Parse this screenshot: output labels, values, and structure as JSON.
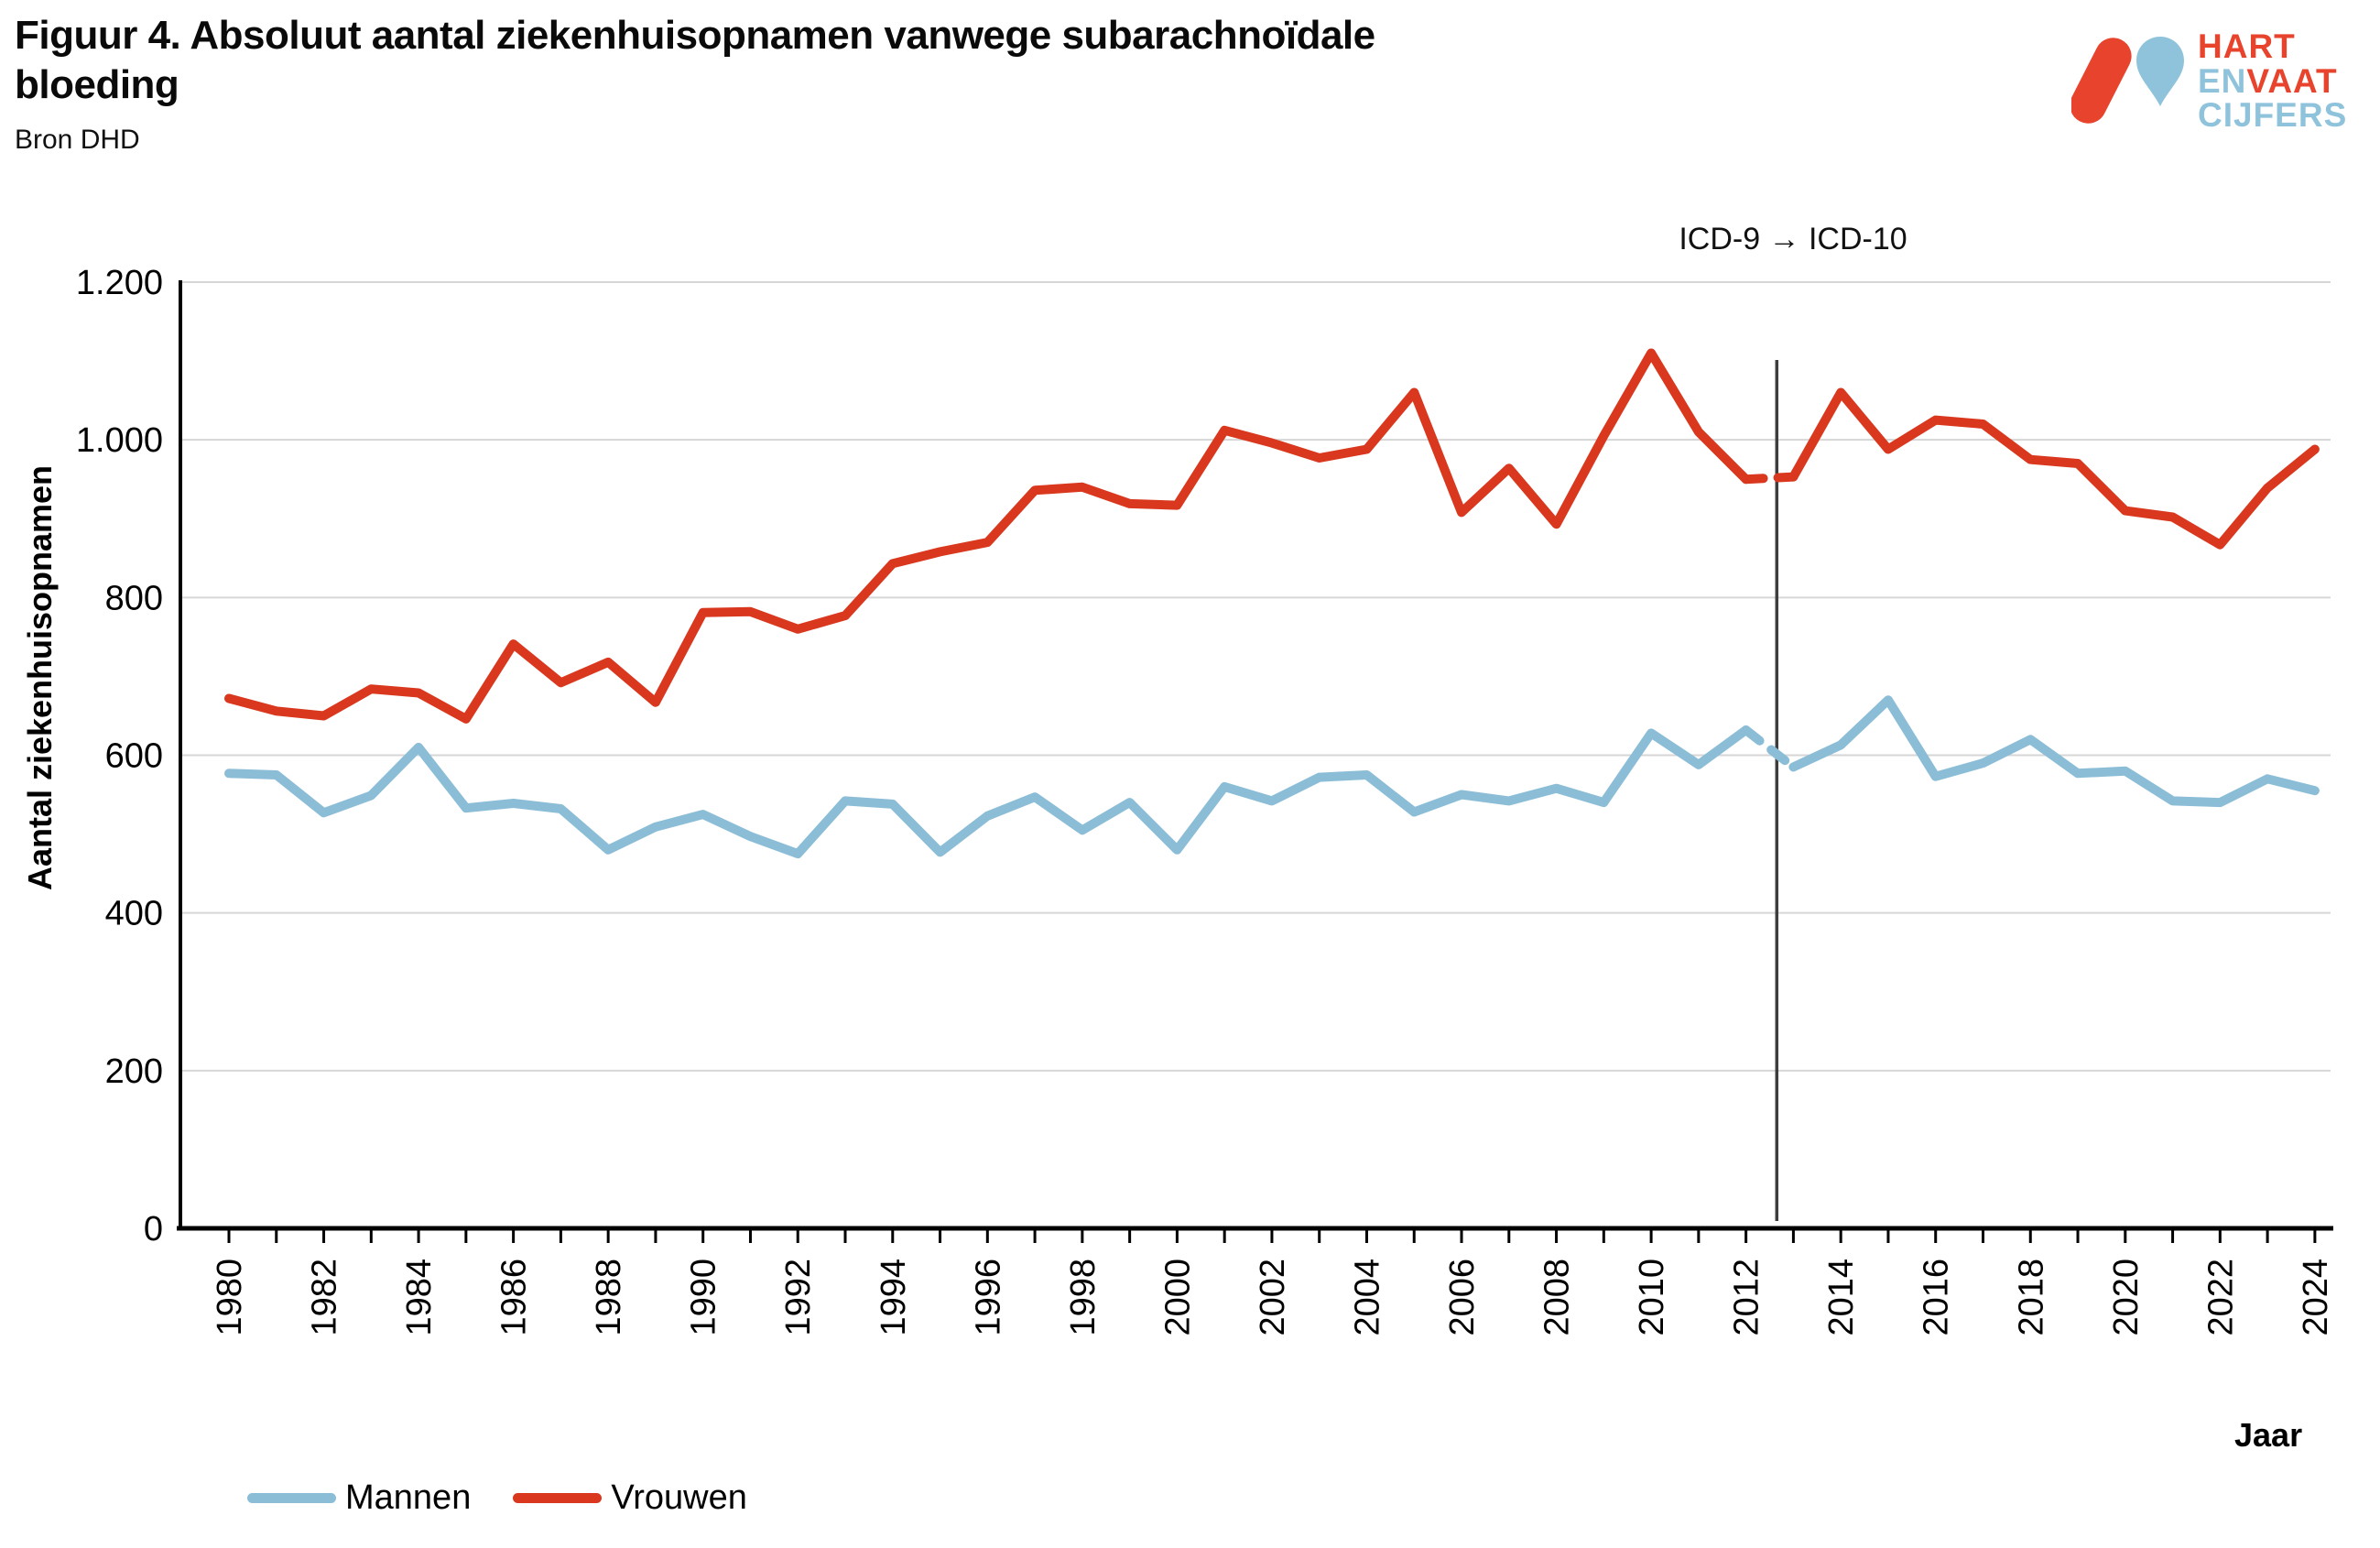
{
  "header": {
    "title": "Figuur 4. Absoluut aantal ziekenhuisopnamen vanwege subarachnoïdale bloeding",
    "source": "Bron DHD"
  },
  "logo": {
    "word1": "HART",
    "word2a": "EN",
    "word2b": "VAAT",
    "word3": "CIJFERS",
    "red": "#e8432c",
    "blue": "#8fc3dc"
  },
  "chart_data": {
    "type": "line",
    "title": "Figuur 4. Absoluut aantal ziekenhuisopnamen vanwege subarachnoïdale bloeding",
    "xlabel": "Jaar",
    "ylabel": "Aantal ziekenhuisopnamen",
    "ylim": [
      0,
      1200
    ],
    "yticks": [
      0,
      200,
      400,
      600,
      800,
      1000,
      1200
    ],
    "ytick_labels": [
      "0",
      "200",
      "400",
      "600",
      "800",
      "1.000",
      "1.200"
    ],
    "grid": "horizontal",
    "legend_position": "bottom-left",
    "x_start_year": 1980,
    "x_end_year": 2024,
    "xtick_label_every": 2,
    "annotation": {
      "text": "ICD-9 → ICD-10",
      "line_year": 2012.65,
      "dashed_from": 2012,
      "dashed_to": 2013
    },
    "series": [
      {
        "name": "Mannen",
        "color": "#8bbdd7",
        "values": [
          577,
          575,
          527,
          549,
          610,
          533,
          539,
          532,
          480,
          509,
          525,
          497,
          475,
          542,
          538,
          477,
          523,
          547,
          505,
          540,
          480,
          560,
          542,
          572,
          575,
          528,
          550,
          542,
          558,
          540,
          628,
          588,
          632,
          585,
          613,
          670,
          573,
          590,
          620,
          577,
          580,
          542,
          540,
          570,
          555
        ]
      },
      {
        "name": "Vrouwen",
        "color": "#d9381f",
        "values": [
          672,
          656,
          650,
          684,
          679,
          646,
          741,
          692,
          718,
          667,
          781,
          782,
          760,
          777,
          843,
          858,
          870,
          936,
          940,
          919,
          917,
          1012,
          996,
          977,
          988,
          1060,
          908,
          964,
          893,
          1005,
          1110,
          1010,
          950,
          953,
          1060,
          988,
          1025,
          1020,
          975,
          970,
          910,
          902,
          867,
          939,
          988
        ]
      }
    ]
  }
}
